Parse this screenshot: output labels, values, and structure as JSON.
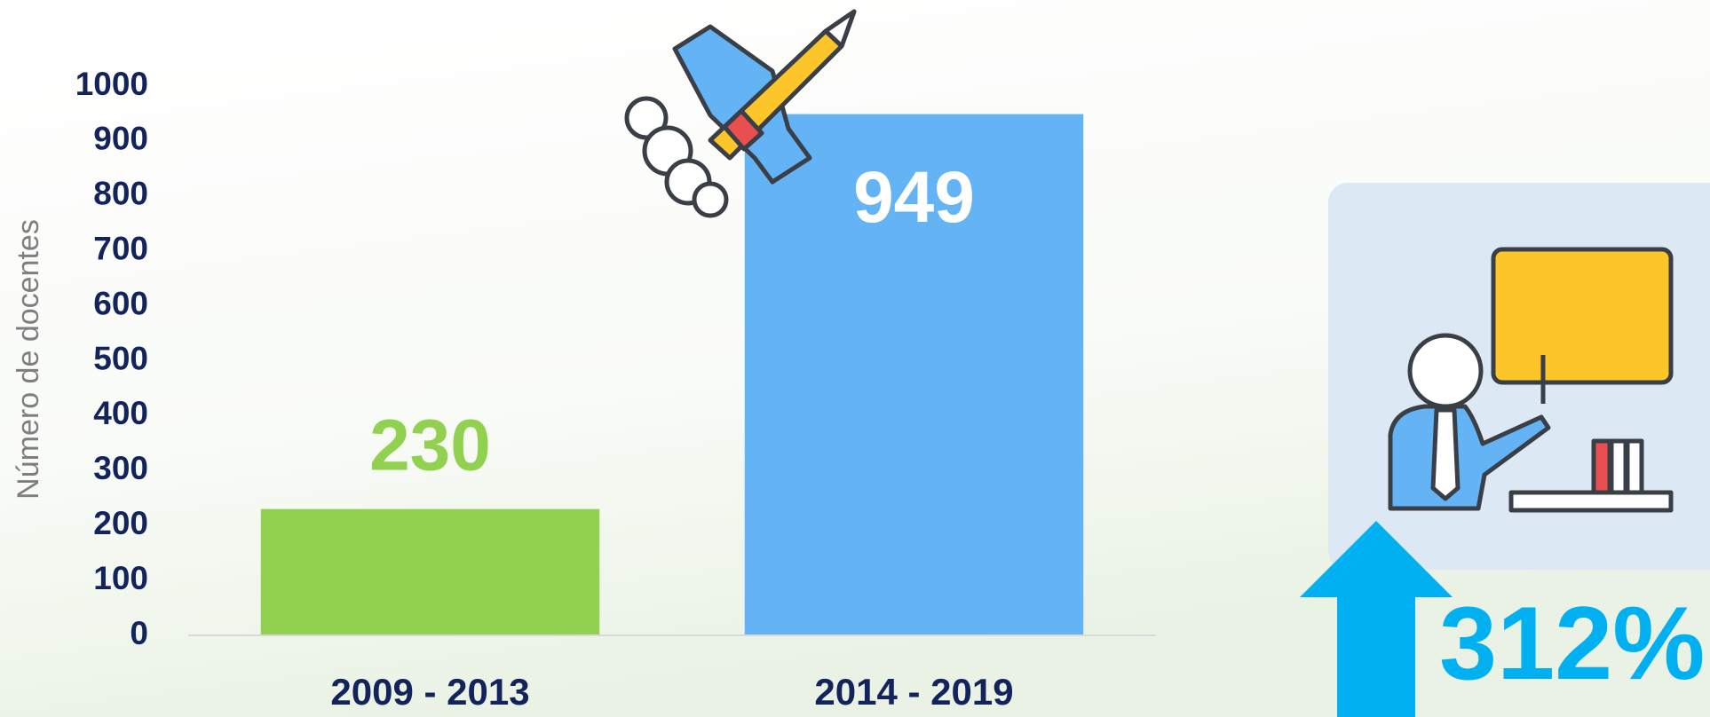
{
  "chart_data": {
    "type": "bar",
    "y_label": "Número de docentes",
    "categories": [
      "2009 - 2013",
      "2014 - 2019"
    ],
    "values": [
      230,
      949
    ],
    "colors": [
      "#92d050",
      "#64b3f4"
    ],
    "ylim": [
      0,
      1000
    ],
    "yticks": [
      0,
      100,
      200,
      300,
      400,
      500,
      600,
      700,
      800,
      900,
      1000
    ],
    "grid": false,
    "annotation": "312%"
  }
}
